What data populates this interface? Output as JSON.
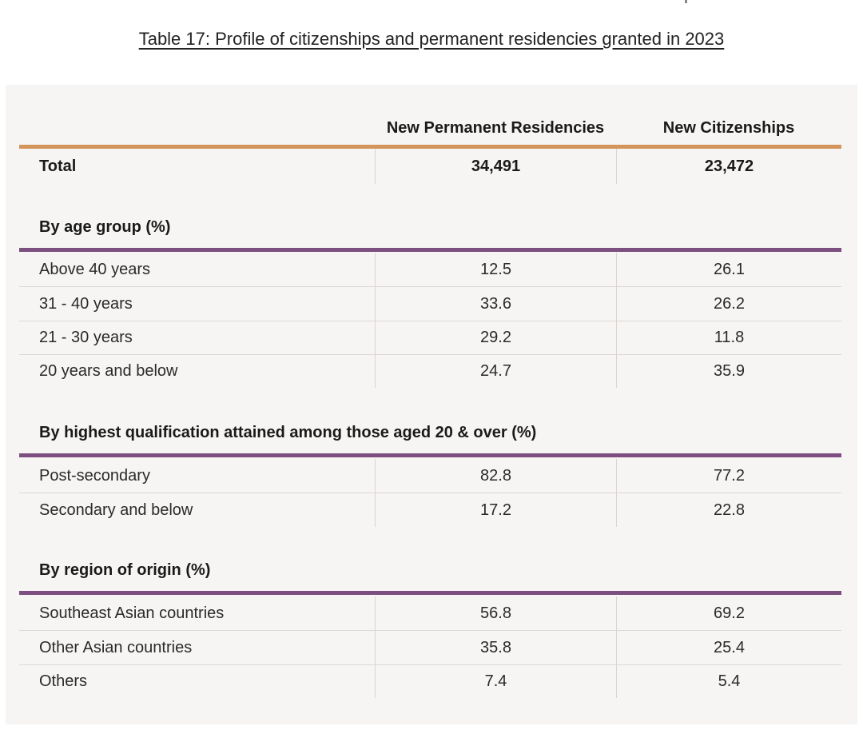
{
  "caption": "Table 17: Profile of citizenships and permanent residencies granted in 2023",
  "colors": {
    "total_rule": "#d3955c",
    "section_rule": "#7d4f80",
    "panel_bg": "#f7f5f4"
  },
  "table": {
    "columns": [
      "",
      "New Permanent Residencies",
      "New Citizenships"
    ],
    "total": {
      "label": "Total",
      "pr": "34,491",
      "citizenship": "23,472"
    },
    "sections": [
      {
        "title": "By age group (%)",
        "rows": [
          {
            "label": "Above 40 years",
            "pr": "12.5",
            "citizenship": "26.1"
          },
          {
            "label": "31 - 40 years",
            "pr": "33.6",
            "citizenship": "26.2"
          },
          {
            "label": "21 - 30 years",
            "pr": "29.2",
            "citizenship": "11.8"
          },
          {
            "label": "20 years and below",
            "pr": "24.7",
            "citizenship": "35.9"
          }
        ]
      },
      {
        "title": "By highest qualification attained among those aged 20 & over (%)",
        "rows": [
          {
            "label": "Post-secondary",
            "pr": "82.8",
            "citizenship": "77.2"
          },
          {
            "label": "Secondary and below",
            "pr": "17.2",
            "citizenship": "22.8"
          }
        ]
      },
      {
        "title": "By region of origin (%)",
        "rows": [
          {
            "label": "Southeast Asian countries",
            "pr": "56.8",
            "citizenship": "69.2"
          },
          {
            "label": "Other Asian countries",
            "pr": "35.8",
            "citizenship": "25.4"
          },
          {
            "label": "Others",
            "pr": "7.4",
            "citizenship": "5.4"
          }
        ]
      }
    ]
  }
}
